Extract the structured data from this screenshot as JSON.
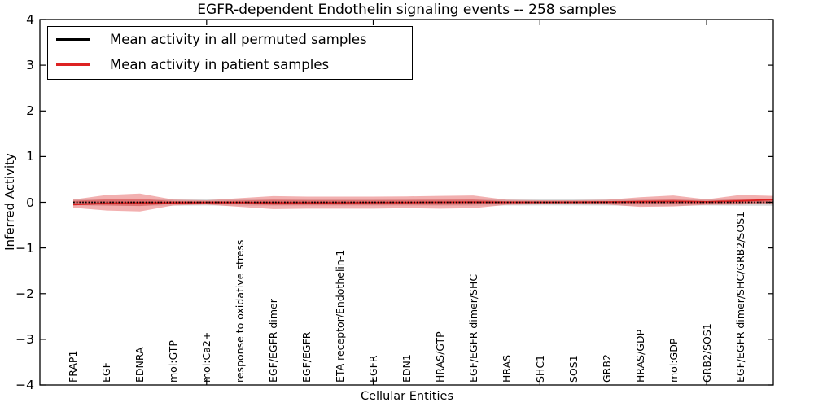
{
  "chart_data": {
    "type": "line",
    "title": "EGFR-dependent Endothelin signaling events -- 258 samples",
    "xlabel": "Cellular Entities",
    "ylabel": "Inferred Activity",
    "xlim": [
      0,
      22
    ],
    "ylim": [
      -4,
      4
    ],
    "yticks": [
      4,
      3,
      2,
      1,
      0,
      -1,
      -2,
      -3,
      -4
    ],
    "ytick_labels": [
      "4",
      "3",
      "2",
      "1",
      "0",
      "−1",
      "−2",
      "−3",
      "−4"
    ],
    "xticks": [
      5,
      10,
      15,
      20
    ],
    "grid": false,
    "legend_position": "upper left",
    "categories": [
      "FRAP1",
      "EGF",
      "EDNRA",
      "mol:GTP",
      "mol:Ca2+",
      "response to oxidative stress",
      "EGF/EGFR dimer",
      "EGF/EGFR",
      "ETA receptor/Endothelin-1",
      "EGFR",
      "EDN1",
      "HRAS/GTP",
      "EGF/EGFR dimer/SHC",
      "HRAS",
      "SHC1",
      "SOS1",
      "GRB2",
      "HRAS/GDP",
      "mol:GDP",
      "GRB2/SOS1",
      "EGF/EGFR dimer/SHC/GRB2/SOS1"
    ],
    "category_x": [
      1,
      2,
      3,
      4,
      5,
      6,
      7,
      8,
      9,
      10,
      11,
      12,
      13,
      14,
      15,
      16,
      17,
      18,
      19,
      20,
      21
    ],
    "x": [
      1,
      2,
      3,
      4,
      5,
      6,
      7,
      8,
      9,
      10,
      11,
      12,
      13,
      14,
      15,
      16,
      17,
      18,
      19,
      20,
      21,
      22
    ],
    "series": [
      {
        "name": "Mean activity in all permuted samples",
        "color": "#000000",
        "line_style": "dotted",
        "values": [
          0,
          0,
          0,
          0,
          0,
          0,
          0,
          0,
          0,
          0,
          0,
          0,
          0,
          0,
          0,
          0,
          0,
          0,
          0,
          0,
          0,
          0
        ]
      },
      {
        "name": "Mean activity in patient samples",
        "color": "#dd2222",
        "line_style": "solid",
        "values": [
          -0.05,
          -0.02,
          -0.012,
          -0.01,
          -0.005,
          -0.008,
          -0.012,
          -0.012,
          -0.01,
          -0.008,
          -0.005,
          0,
          0.004,
          0,
          0,
          0.002,
          0.005,
          0.012,
          0.02,
          0.01,
          0.03,
          0.06
        ]
      }
    ],
    "bands": [
      {
        "name": "permuted-samples-outer-band",
        "color": "#aaaaaa",
        "opacity": 0.45,
        "upper": [
          0.07,
          0.075,
          0.08,
          0.075,
          0.072,
          0.075,
          0.078,
          0.076,
          0.075,
          0.075,
          0.075,
          0.076,
          0.075,
          0.072,
          0.07,
          0.07,
          0.072,
          0.075,
          0.075,
          0.072,
          0.075,
          0.075
        ],
        "lower": [
          -0.07,
          -0.075,
          -0.08,
          -0.075,
          -0.072,
          -0.075,
          -0.078,
          -0.076,
          -0.075,
          -0.075,
          -0.075,
          -0.076,
          -0.075,
          -0.072,
          -0.07,
          -0.07,
          -0.072,
          -0.075,
          -0.075,
          -0.072,
          -0.075,
          -0.075
        ]
      },
      {
        "name": "permuted-samples-inner-band",
        "color": "#999999",
        "opacity": 0.35,
        "upper": [
          0.03,
          0.03,
          0.03,
          0.03,
          0.03,
          0.03,
          0.03,
          0.03,
          0.03,
          0.03,
          0.03,
          0.03,
          0.03,
          0.03,
          0.03,
          0.03,
          0.03,
          0.03,
          0.03,
          0.03,
          0.03,
          0.03
        ],
        "lower": [
          -0.03,
          -0.03,
          -0.03,
          -0.03,
          -0.03,
          -0.03,
          -0.03,
          -0.03,
          -0.03,
          -0.03,
          -0.03,
          -0.03,
          -0.03,
          -0.03,
          -0.03,
          -0.03,
          -0.03,
          -0.03,
          -0.03,
          -0.03,
          -0.03,
          -0.03
        ]
      },
      {
        "name": "patient-samples-outer-band",
        "color": "#e87070",
        "opacity": 0.55,
        "upper": [
          0.06,
          0.16,
          0.19,
          0.06,
          0.045,
          0.09,
          0.135,
          0.125,
          0.125,
          0.125,
          0.13,
          0.14,
          0.15,
          0.055,
          0.045,
          0.045,
          0.055,
          0.11,
          0.15,
          0.065,
          0.16,
          0.14
        ],
        "lower": [
          -0.12,
          -0.18,
          -0.2,
          -0.07,
          -0.05,
          -0.1,
          -0.15,
          -0.14,
          -0.14,
          -0.14,
          -0.13,
          -0.14,
          -0.13,
          -0.055,
          -0.045,
          -0.045,
          -0.05,
          -0.1,
          -0.09,
          -0.055,
          -0.05,
          -0.03
        ]
      },
      {
        "name": "patient-samples-inner-band",
        "color": "#dd4444",
        "opacity": 0.5,
        "upper": [
          0.03,
          0.065,
          0.075,
          0.027,
          0.02,
          0.038,
          0.055,
          0.05,
          0.05,
          0.05,
          0.052,
          0.056,
          0.06,
          0.024,
          0.02,
          0.02,
          0.024,
          0.045,
          0.06,
          0.028,
          0.07,
          0.06
        ],
        "lower": [
          -0.06,
          -0.07,
          -0.082,
          -0.03,
          -0.022,
          -0.042,
          -0.06,
          -0.056,
          -0.056,
          -0.056,
          -0.052,
          -0.056,
          -0.05,
          -0.024,
          -0.02,
          -0.02,
          -0.022,
          -0.04,
          -0.035,
          -0.024,
          -0.02,
          -0.008
        ]
      }
    ]
  }
}
